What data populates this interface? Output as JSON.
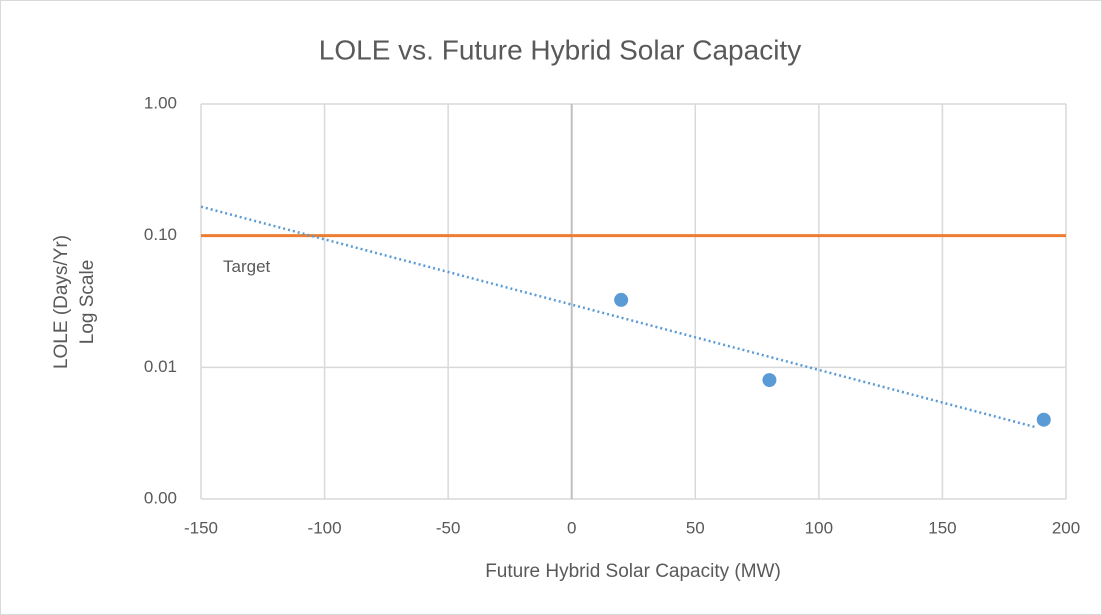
{
  "chart_data": {
    "type": "scatter",
    "title": "LOLE vs. Future Hybrid Solar Capacity",
    "x_label": "Future Hybrid Solar Capacity (MW)",
    "y_label": [
      "LOLE (Days/Yr)",
      "Log Scale"
    ],
    "y_log": true,
    "grid": true,
    "xlim": [
      -150,
      200
    ],
    "xticks": [
      -150,
      -100,
      -50,
      0,
      50,
      100,
      150,
      200
    ],
    "ylim": [
      0.001,
      1
    ],
    "yticks": [
      {
        "value": 0.001,
        "label": "0.00"
      },
      {
        "value": 0.01,
        "label": "0.01"
      },
      {
        "value": 0.1,
        "label": "0.10"
      },
      {
        "value": 1,
        "label": "1.00"
      }
    ],
    "series": [
      {
        "name": "LOLE",
        "color": "#5b9bd5",
        "x": [
          20,
          80,
          191
        ],
        "values": [
          0.0325,
          0.008,
          0.004
        ]
      }
    ],
    "trendline": {
      "color": "#5b9bd5",
      "x": [
        -150,
        188
      ],
      "values": [
        0.166,
        0.0035
      ]
    },
    "target": {
      "label": "Target",
      "value": 0.1,
      "color": "#ed7d31"
    }
  }
}
